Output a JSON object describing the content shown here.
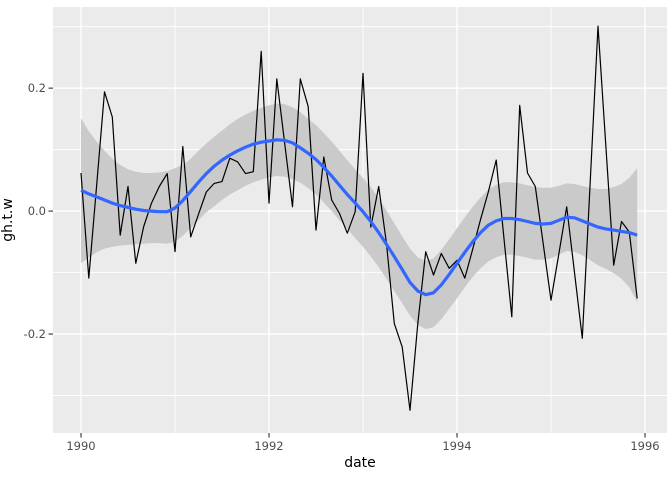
{
  "figure": {
    "background": "#FFFFFF",
    "panel_background": "#EBEBEB",
    "grid_color": "#FFFFFF",
    "tick_color": "#333333",
    "tick_label_color": "#4D4D4D",
    "axis_title_color": "#000000"
  },
  "chart_data": {
    "type": "line",
    "title": "",
    "xlabel": "date",
    "ylabel": "gh.t.w",
    "xlim": [
      1989.702,
      1996.234
    ],
    "ylim": [
      -0.361,
      0.332
    ],
    "grid": true,
    "legend_position": "none",
    "x_ticks": {
      "values": [
        1990,
        1992,
        1994,
        1996
      ],
      "labels": [
        "1990",
        "1992",
        "1994",
        "1996"
      ]
    },
    "y_ticks": {
      "values": [
        -0.2,
        0.0,
        0.2
      ],
      "labels": [
        "-0.2",
        "0.0",
        "0.2"
      ]
    },
    "x_minor_breaks": [
      1991,
      1993,
      1995
    ],
    "y_minor_breaks": [
      -0.3,
      -0.1,
      0.1,
      0.3
    ],
    "series": [
      {
        "name": "gh.t.w monthly data",
        "type": "line",
        "color": "#000000",
        "width": 1.2,
        "x_start": 1990.0,
        "x_step": 0.0833333,
        "values": [
          0.062,
          -0.109,
          0.043,
          0.194,
          0.153,
          -0.039,
          0.04,
          -0.085,
          -0.025,
          0.013,
          0.04,
          0.061,
          -0.066,
          0.105,
          -0.042,
          -0.005,
          0.031,
          0.045,
          0.048,
          0.086,
          0.08,
          0.061,
          0.064,
          0.26,
          0.013,
          0.215,
          0.11,
          0.007,
          0.215,
          0.17,
          -0.031,
          0.088,
          0.018,
          -0.004,
          -0.036,
          -0.001,
          0.224,
          -0.026,
          0.04,
          -0.053,
          -0.183,
          -0.221,
          -0.324,
          -0.183,
          -0.066,
          -0.104,
          -0.069,
          -0.093,
          -0.08,
          -0.109,
          -0.062,
          -0.014,
          0.031,
          0.083,
          -0.045,
          -0.172,
          0.172,
          0.062,
          0.04,
          -0.053,
          -0.145,
          -0.07,
          0.007,
          -0.1,
          -0.207,
          0.047,
          0.301,
          0.107,
          -0.088,
          -0.017,
          -0.034,
          -0.142
        ]
      },
      {
        "name": "loess smooth",
        "type": "line",
        "color": "#3366FF",
        "width": 3.2,
        "x_start": 1990.0,
        "x_step": 0.0833333,
        "values": [
          0.034,
          0.028,
          0.023,
          0.018,
          0.013,
          0.009,
          0.006,
          0.003,
          0.001,
          0.0,
          -0.001,
          -0.001,
          0.005,
          0.017,
          0.032,
          0.047,
          0.061,
          0.073,
          0.083,
          0.091,
          0.098,
          0.104,
          0.109,
          0.112,
          0.114,
          0.116,
          0.115,
          0.111,
          0.103,
          0.094,
          0.084,
          0.071,
          0.057,
          0.042,
          0.027,
          0.013,
          -0.001,
          -0.017,
          -0.035,
          -0.054,
          -0.074,
          -0.095,
          -0.116,
          -0.13,
          -0.136,
          -0.133,
          -0.12,
          -0.103,
          -0.085,
          -0.067,
          -0.05,
          -0.035,
          -0.023,
          -0.016,
          -0.012,
          -0.012,
          -0.014,
          -0.017,
          -0.02,
          -0.021,
          -0.02,
          -0.015,
          -0.01,
          -0.011,
          -0.016,
          -0.021,
          -0.026,
          -0.029,
          -0.031,
          -0.033,
          -0.035,
          -0.039
        ]
      },
      {
        "name": "confidence band",
        "type": "area",
        "color": "#CACACA",
        "x_start": 1990.0,
        "x_step": 0.0833333,
        "lower": [
          -0.085,
          -0.075,
          -0.067,
          -0.061,
          -0.058,
          -0.056,
          -0.055,
          -0.054,
          -0.053,
          -0.052,
          -0.052,
          -0.053,
          -0.05,
          -0.04,
          -0.028,
          -0.015,
          -0.002,
          0.008,
          0.018,
          0.027,
          0.034,
          0.041,
          0.047,
          0.051,
          0.055,
          0.057,
          0.056,
          0.052,
          0.046,
          0.037,
          0.027,
          0.014,
          0.0,
          -0.015,
          -0.029,
          -0.044,
          -0.058,
          -0.074,
          -0.091,
          -0.11,
          -0.13,
          -0.15,
          -0.17,
          -0.185,
          -0.192,
          -0.189,
          -0.176,
          -0.159,
          -0.142,
          -0.124,
          -0.107,
          -0.093,
          -0.082,
          -0.075,
          -0.071,
          -0.071,
          -0.073,
          -0.076,
          -0.079,
          -0.079,
          -0.077,
          -0.071,
          -0.065,
          -0.066,
          -0.072,
          -0.08,
          -0.088,
          -0.094,
          -0.101,
          -0.11,
          -0.124,
          -0.148
        ],
        "upper": [
          0.151,
          0.13,
          0.113,
          0.098,
          0.085,
          0.075,
          0.068,
          0.064,
          0.062,
          0.062,
          0.063,
          0.065,
          0.07,
          0.075,
          0.085,
          0.098,
          0.11,
          0.121,
          0.131,
          0.141,
          0.15,
          0.157,
          0.163,
          0.168,
          0.172,
          0.175,
          0.174,
          0.169,
          0.161,
          0.15,
          0.14,
          0.127,
          0.113,
          0.098,
          0.083,
          0.068,
          0.054,
          0.039,
          0.021,
          0.001,
          -0.02,
          -0.041,
          -0.061,
          -0.075,
          -0.081,
          -0.077,
          -0.063,
          -0.046,
          -0.028,
          -0.01,
          0.007,
          0.022,
          0.035,
          0.043,
          0.047,
          0.047,
          0.045,
          0.042,
          0.039,
          0.038,
          0.038,
          0.041,
          0.045,
          0.044,
          0.041,
          0.038,
          0.036,
          0.036,
          0.039,
          0.044,
          0.054,
          0.07
        ]
      }
    ]
  }
}
